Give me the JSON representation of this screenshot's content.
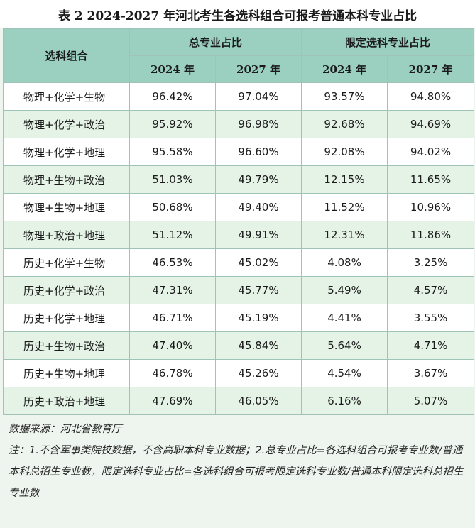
{
  "title": "表 2  2024-2027 年河北考生各选科组合可报考普通本科专业占比",
  "header": {
    "combo": "选科组合",
    "group_total": "总专业占比",
    "group_restricted": "限定选科专业占比",
    "years": [
      "2024 年",
      "2027 年",
      "2024 年",
      "2027 年"
    ]
  },
  "rows": [
    {
      "combo": "物理+化学+生物",
      "t2024": "96.42%",
      "t2027": "97.04%",
      "r2024": "93.57%",
      "r2027": "94.80%"
    },
    {
      "combo": "物理+化学+政治",
      "t2024": "95.92%",
      "t2027": "96.98%",
      "r2024": "92.68%",
      "r2027": "94.69%"
    },
    {
      "combo": "物理+化学+地理",
      "t2024": "95.58%",
      "t2027": "96.60%",
      "r2024": "92.08%",
      "r2027": "94.02%"
    },
    {
      "combo": "物理+生物+政治",
      "t2024": "51.03%",
      "t2027": "49.79%",
      "r2024": "12.15%",
      "r2027": "11.65%"
    },
    {
      "combo": "物理+生物+地理",
      "t2024": "50.68%",
      "t2027": "49.40%",
      "r2024": "11.52%",
      "r2027": "10.96%"
    },
    {
      "combo": "物理+政治+地理",
      "t2024": "51.12%",
      "t2027": "49.91%",
      "r2024": "12.31%",
      "r2027": "11.86%"
    },
    {
      "combo": "历史+化学+生物",
      "t2024": "46.53%",
      "t2027": "45.02%",
      "r2024": "4.08%",
      "r2027": "3.25%"
    },
    {
      "combo": "历史+化学+政治",
      "t2024": "47.31%",
      "t2027": "45.77%",
      "r2024": "5.49%",
      "r2027": "4.57%"
    },
    {
      "combo": "历史+化学+地理",
      "t2024": "46.71%",
      "t2027": "45.19%",
      "r2024": "4.41%",
      "r2027": "3.55%"
    },
    {
      "combo": "历史+生物+政治",
      "t2024": "47.40%",
      "t2027": "45.84%",
      "r2024": "5.64%",
      "r2027": "4.71%"
    },
    {
      "combo": "历史+生物+地理",
      "t2024": "46.78%",
      "t2027": "45.26%",
      "r2024": "4.54%",
      "r2027": "3.67%"
    },
    {
      "combo": "历史+政治+地理",
      "t2024": "47.69%",
      "t2027": "46.05%",
      "r2024": "6.16%",
      "r2027": "5.07%"
    }
  ],
  "notes": {
    "source": "数据来源：河北省教育厅",
    "note": "注：1.不含军事类院校数据，不含高职本科专业数据；2.总专业占比=各选科组合可报考专业数/普通本科总招生专业数，限定选科专业占比=各选科组合可报考限定选科专业数/普通本科限定选科总招生专业数"
  }
}
